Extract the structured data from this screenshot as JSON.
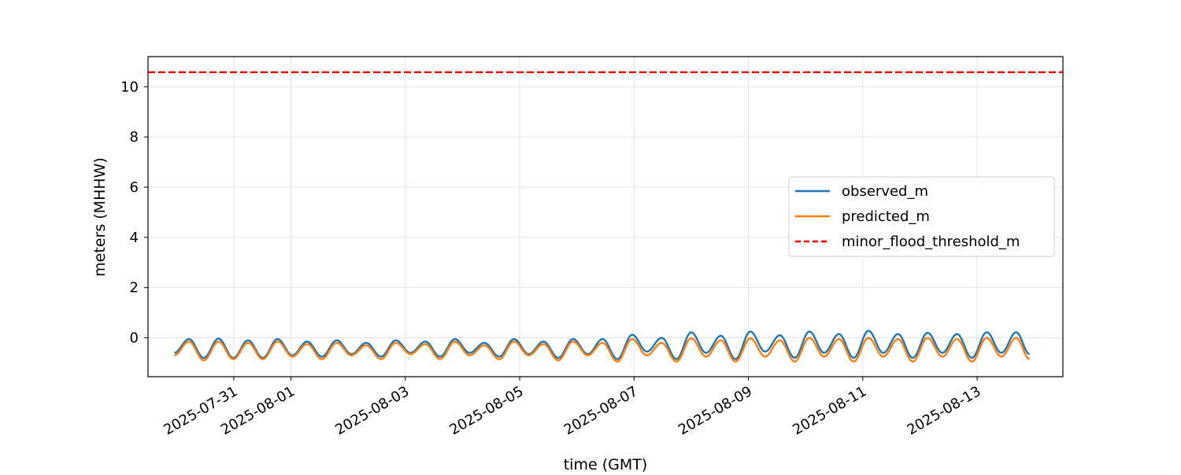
{
  "chart_data": {
    "type": "line",
    "title": "",
    "xlabel": "time (GMT)",
    "ylabel": "meters (MHHW)",
    "x_range": [
      "2025-07-29T12:00",
      "2025-08-14T12:00"
    ],
    "ylim": [
      -1.55,
      11.2
    ],
    "yticks": [
      0,
      2,
      4,
      6,
      8,
      10
    ],
    "xticks": [
      "2025-07-31",
      "2025-08-01",
      "2025-08-03",
      "2025-08-05",
      "2025-08-07",
      "2025-08-09",
      "2025-08-11",
      "2025-08-13"
    ],
    "grid": true,
    "legend_position": "center-right",
    "colors": {
      "observed_m": "#1f77b4",
      "predicted_m": "#ff7f0e",
      "minor_flood_threshold_m": "#ff0000"
    },
    "series": [
      {
        "name": "observed_m",
        "style": "solid",
        "extrema": [
          [
            "2025-07-29T23:00",
            -0.6
          ],
          [
            "2025-07-30T05:12",
            -0.05
          ],
          [
            "2025-07-30T11:24",
            -0.8
          ],
          [
            "2025-07-30T17:36",
            -0.03
          ],
          [
            "2025-07-30T23:48",
            -0.8
          ],
          [
            "2025-07-31T06:00",
            -0.1
          ],
          [
            "2025-07-31T12:12",
            -0.8
          ],
          [
            "2025-07-31T18:24",
            -0.05
          ],
          [
            "2025-08-01T00:36",
            -0.7
          ],
          [
            "2025-08-01T06:48",
            -0.15
          ],
          [
            "2025-08-01T13:00",
            -0.75
          ],
          [
            "2025-08-01T19:12",
            -0.1
          ],
          [
            "2025-08-02T01:24",
            -0.65
          ],
          [
            "2025-08-02T07:36",
            -0.2
          ],
          [
            "2025-08-02T13:48",
            -0.75
          ],
          [
            "2025-08-02T20:00",
            -0.1
          ],
          [
            "2025-08-03T02:12",
            -0.6
          ],
          [
            "2025-08-03T08:24",
            -0.15
          ],
          [
            "2025-08-03T14:36",
            -0.75
          ],
          [
            "2025-08-03T20:48",
            -0.05
          ],
          [
            "2025-08-04T03:00",
            -0.6
          ],
          [
            "2025-08-04T09:12",
            -0.2
          ],
          [
            "2025-08-04T15:24",
            -0.75
          ],
          [
            "2025-08-04T21:36",
            -0.05
          ],
          [
            "2025-08-05T03:48",
            -0.65
          ],
          [
            "2025-08-05T10:00",
            -0.15
          ],
          [
            "2025-08-05T16:12",
            -0.8
          ],
          [
            "2025-08-05T22:24",
            -0.05
          ],
          [
            "2025-08-06T04:36",
            -0.65
          ],
          [
            "2025-08-06T10:48",
            -0.05
          ],
          [
            "2025-08-06T17:00",
            -0.85
          ],
          [
            "2025-08-06T23:12",
            0.12
          ],
          [
            "2025-08-07T05:24",
            -0.55
          ],
          [
            "2025-08-07T11:36",
            0.0
          ],
          [
            "2025-08-07T17:48",
            -0.85
          ],
          [
            "2025-08-08T00:00",
            0.22
          ],
          [
            "2025-08-08T06:12",
            -0.6
          ],
          [
            "2025-08-08T12:24",
            0.08
          ],
          [
            "2025-08-08T18:36",
            -0.85
          ],
          [
            "2025-08-09T00:48",
            0.25
          ],
          [
            "2025-08-09T07:00",
            -0.55
          ],
          [
            "2025-08-09T13:12",
            0.1
          ],
          [
            "2025-08-09T19:24",
            -0.8
          ],
          [
            "2025-08-10T01:36",
            0.25
          ],
          [
            "2025-08-10T07:48",
            -0.6
          ],
          [
            "2025-08-10T14:00",
            0.15
          ],
          [
            "2025-08-10T20:12",
            -0.8
          ],
          [
            "2025-08-11T02:24",
            0.28
          ],
          [
            "2025-08-11T08:36",
            -0.6
          ],
          [
            "2025-08-11T14:48",
            0.15
          ],
          [
            "2025-08-11T21:00",
            -0.8
          ],
          [
            "2025-08-12T03:12",
            0.2
          ],
          [
            "2025-08-12T09:24",
            -0.6
          ],
          [
            "2025-08-12T15:36",
            0.15
          ],
          [
            "2025-08-12T21:48",
            -0.8
          ],
          [
            "2025-08-13T04:00",
            0.22
          ],
          [
            "2025-08-13T10:12",
            -0.6
          ],
          [
            "2025-08-13T16:24",
            0.22
          ],
          [
            "2025-08-13T22:00",
            -0.65
          ]
        ]
      },
      {
        "name": "predicted_m",
        "style": "solid",
        "extrema": [
          [
            "2025-07-29T23:00",
            -0.7
          ],
          [
            "2025-07-30T05:12",
            -0.15
          ],
          [
            "2025-07-30T11:24",
            -0.9
          ],
          [
            "2025-07-30T17:36",
            -0.15
          ],
          [
            "2025-07-30T23:48",
            -0.85
          ],
          [
            "2025-07-31T06:00",
            -0.2
          ],
          [
            "2025-07-31T12:12",
            -0.85
          ],
          [
            "2025-07-31T18:24",
            -0.15
          ],
          [
            "2025-08-01T00:36",
            -0.75
          ],
          [
            "2025-08-01T06:48",
            -0.25
          ],
          [
            "2025-08-01T13:00",
            -0.85
          ],
          [
            "2025-08-01T19:12",
            -0.2
          ],
          [
            "2025-08-02T01:24",
            -0.7
          ],
          [
            "2025-08-02T07:36",
            -0.3
          ],
          [
            "2025-08-02T13:48",
            -0.85
          ],
          [
            "2025-08-02T20:00",
            -0.2
          ],
          [
            "2025-08-03T02:12",
            -0.65
          ],
          [
            "2025-08-03T08:24",
            -0.25
          ],
          [
            "2025-08-03T14:36",
            -0.85
          ],
          [
            "2025-08-03T20:48",
            -0.15
          ],
          [
            "2025-08-04T03:00",
            -0.7
          ],
          [
            "2025-08-04T09:12",
            -0.3
          ],
          [
            "2025-08-04T15:24",
            -0.85
          ],
          [
            "2025-08-04T21:36",
            -0.15
          ],
          [
            "2025-08-05T03:48",
            -0.7
          ],
          [
            "2025-08-05T10:00",
            -0.25
          ],
          [
            "2025-08-05T16:12",
            -0.9
          ],
          [
            "2025-08-05T22:24",
            -0.15
          ],
          [
            "2025-08-06T04:36",
            -0.7
          ],
          [
            "2025-08-06T10:48",
            -0.2
          ],
          [
            "2025-08-06T17:00",
            -0.95
          ],
          [
            "2025-08-06T23:12",
            -0.05
          ],
          [
            "2025-08-07T05:24",
            -0.7
          ],
          [
            "2025-08-07T11:36",
            -0.2
          ],
          [
            "2025-08-07T17:48",
            -0.95
          ],
          [
            "2025-08-08T00:00",
            -0.02
          ],
          [
            "2025-08-08T06:12",
            -0.75
          ],
          [
            "2025-08-08T12:24",
            -0.1
          ],
          [
            "2025-08-08T18:36",
            -0.95
          ],
          [
            "2025-08-09T00:48",
            -0.02
          ],
          [
            "2025-08-09T07:00",
            -0.75
          ],
          [
            "2025-08-09T13:12",
            -0.1
          ],
          [
            "2025-08-09T19:24",
            -0.95
          ],
          [
            "2025-08-10T01:36",
            0.0
          ],
          [
            "2025-08-10T07:48",
            -0.75
          ],
          [
            "2025-08-10T14:00",
            -0.05
          ],
          [
            "2025-08-10T20:12",
            -0.95
          ],
          [
            "2025-08-11T02:24",
            0.0
          ],
          [
            "2025-08-11T08:36",
            -0.75
          ],
          [
            "2025-08-11T14:48",
            -0.05
          ],
          [
            "2025-08-11T21:00",
            -0.95
          ],
          [
            "2025-08-12T03:12",
            0.0
          ],
          [
            "2025-08-12T09:24",
            -0.75
          ],
          [
            "2025-08-12T15:36",
            -0.05
          ],
          [
            "2025-08-12T21:48",
            -0.95
          ],
          [
            "2025-08-13T04:00",
            0.0
          ],
          [
            "2025-08-13T10:12",
            -0.75
          ],
          [
            "2025-08-13T16:24",
            0.0
          ],
          [
            "2025-08-13T22:00",
            -0.85
          ]
        ]
      },
      {
        "name": "minor_flood_threshold_m",
        "style": "dashed",
        "value": 10.58
      }
    ]
  }
}
